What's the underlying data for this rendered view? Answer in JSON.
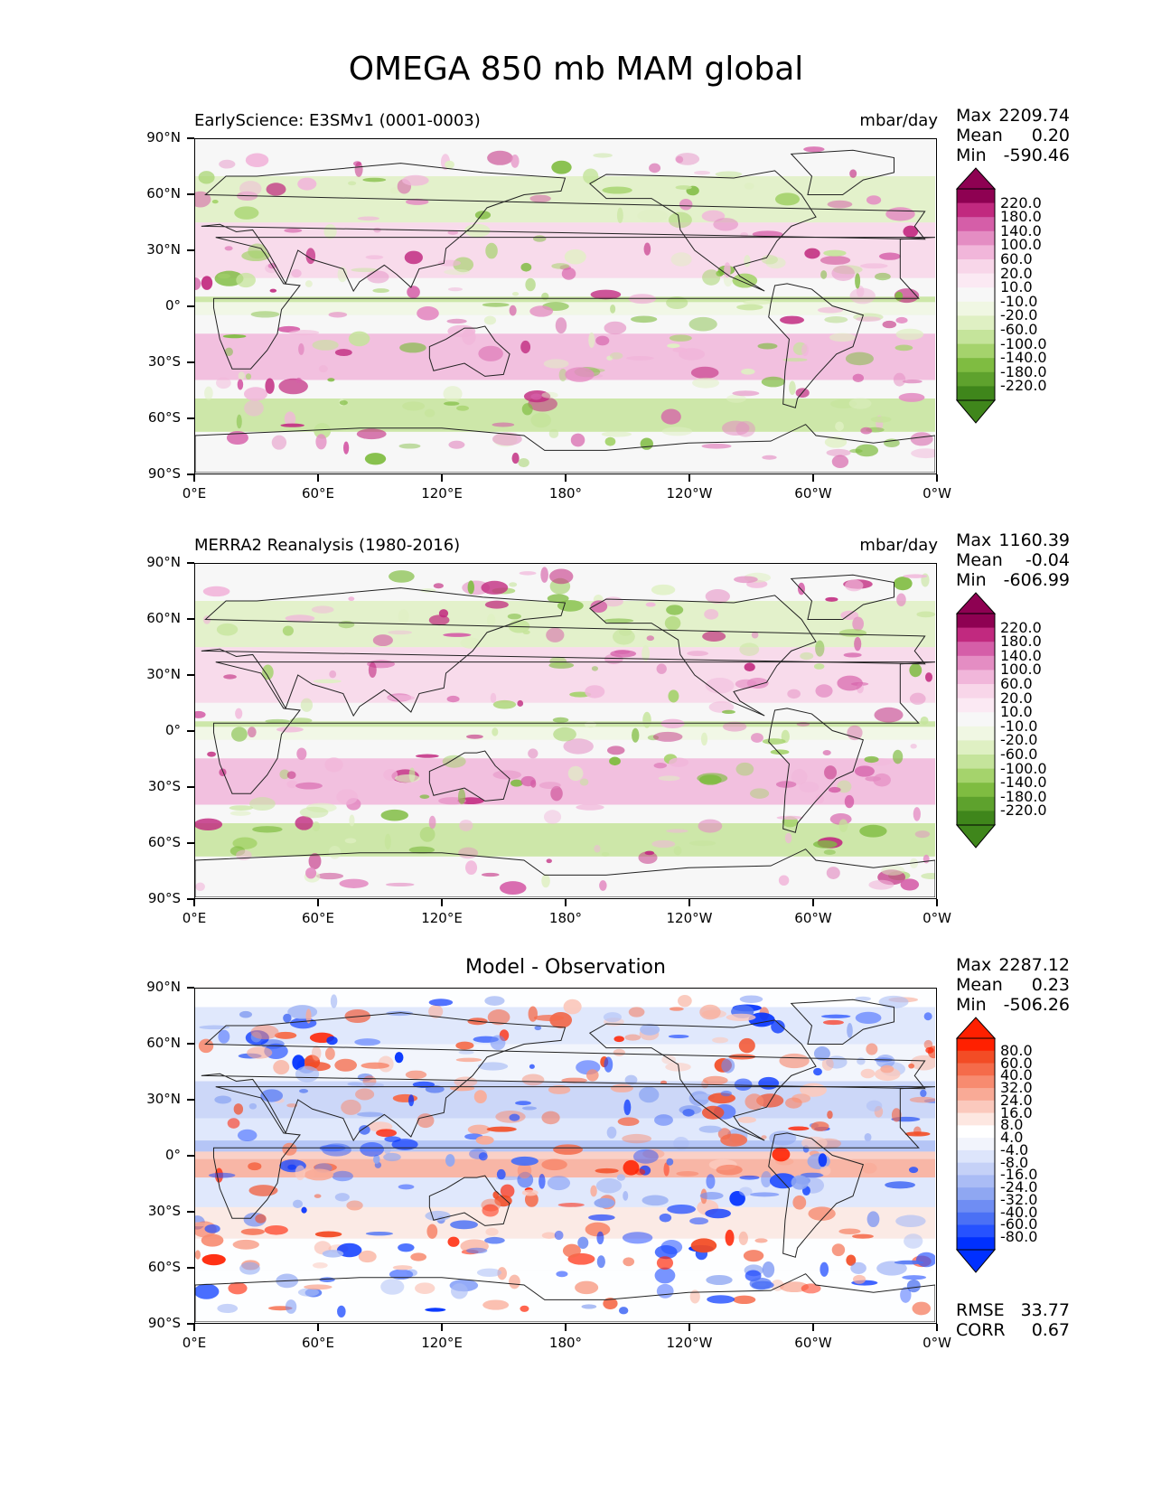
{
  "figure_title": "OMEGA 850 mb MAM global",
  "lat_labels": [
    "90°N",
    "60°N",
    "30°N",
    "0°",
    "30°S",
    "60°S",
    "90°S"
  ],
  "lon_labels": [
    "0°E",
    "60°E",
    "120°E",
    "180°",
    "120°W",
    "60°W",
    "0°W"
  ],
  "colors": {
    "piyg": [
      "#276419",
      "#3f861b",
      "#5ea22d",
      "#7fbc41",
      "#a5d36c",
      "#c5e49b",
      "#dff0c3",
      "#f0f7e3",
      "#f7f7f7",
      "#fbe9f3",
      "#f8d6e9",
      "#f1b6da",
      "#e48dc3",
      "#d55ea8",
      "#c1297f",
      "#8e0152"
    ],
    "bwr": [
      "#0030ff",
      "#2652ff",
      "#4b70f5",
      "#6f8df3",
      "#8fa7f2",
      "#aabcf5",
      "#c5d1f7",
      "#dde5fb",
      "#f2f4fc",
      "#ffffff",
      "#fde7e1",
      "#fbc9bd",
      "#f9aa96",
      "#f78b70",
      "#f56b4a",
      "#f34c25",
      "#ff2000"
    ]
  },
  "chart_data": [
    {
      "type": "heatmap",
      "name": "test",
      "subtitle": "EarlyScience: E3SMv1 (0001-0003)",
      "units": "mbar/day",
      "stats": {
        "max_label": "Max",
        "max": "2209.74",
        "mean_label": "Mean",
        "mean": "0.20",
        "min_label": "Min",
        "min": "-590.46"
      },
      "colorbar_levels": [
        "220.0",
        "180.0",
        "140.0",
        "100.0",
        "60.0",
        "20.0",
        "10.0",
        "-10.0",
        "-20.0",
        "-60.0",
        "-100.0",
        "-140.0",
        "-180.0",
        "-220.0"
      ],
      "xrange": [
        0,
        360
      ],
      "yrange": [
        -90,
        90
      ]
    },
    {
      "type": "heatmap",
      "name": "reference",
      "subtitle": "MERRA2 Reanalysis (1980-2016)",
      "units": "mbar/day",
      "stats": {
        "max_label": "Max",
        "max": "1160.39",
        "mean_label": "Mean",
        "mean": "-0.04",
        "min_label": "Min",
        "min": "-606.99"
      },
      "colorbar_levels": [
        "220.0",
        "180.0",
        "140.0",
        "100.0",
        "60.0",
        "20.0",
        "10.0",
        "-10.0",
        "-20.0",
        "-60.0",
        "-100.0",
        "-140.0",
        "-180.0",
        "-220.0"
      ],
      "xrange": [
        0,
        360
      ],
      "yrange": [
        -90,
        90
      ]
    },
    {
      "type": "heatmap",
      "name": "difference",
      "title": "Model - Observation",
      "stats": {
        "max_label": "Max",
        "max": "2287.12",
        "mean_label": "Mean",
        "mean": "0.23",
        "min_label": "Min",
        "min": "-506.26"
      },
      "colorbar_levels": [
        "80.0",
        "60.0",
        "40.0",
        "32.0",
        "24.0",
        "16.0",
        "8.0",
        "4.0",
        "-4.0",
        "-8.0",
        "-16.0",
        "-24.0",
        "-32.0",
        "-40.0",
        "-60.0",
        "-80.0"
      ],
      "metrics": {
        "rmse_label": "RMSE",
        "rmse": "33.77",
        "corr_label": "CORR",
        "corr": "0.67"
      },
      "xrange": [
        0,
        360
      ],
      "yrange": [
        -90,
        90
      ]
    }
  ]
}
